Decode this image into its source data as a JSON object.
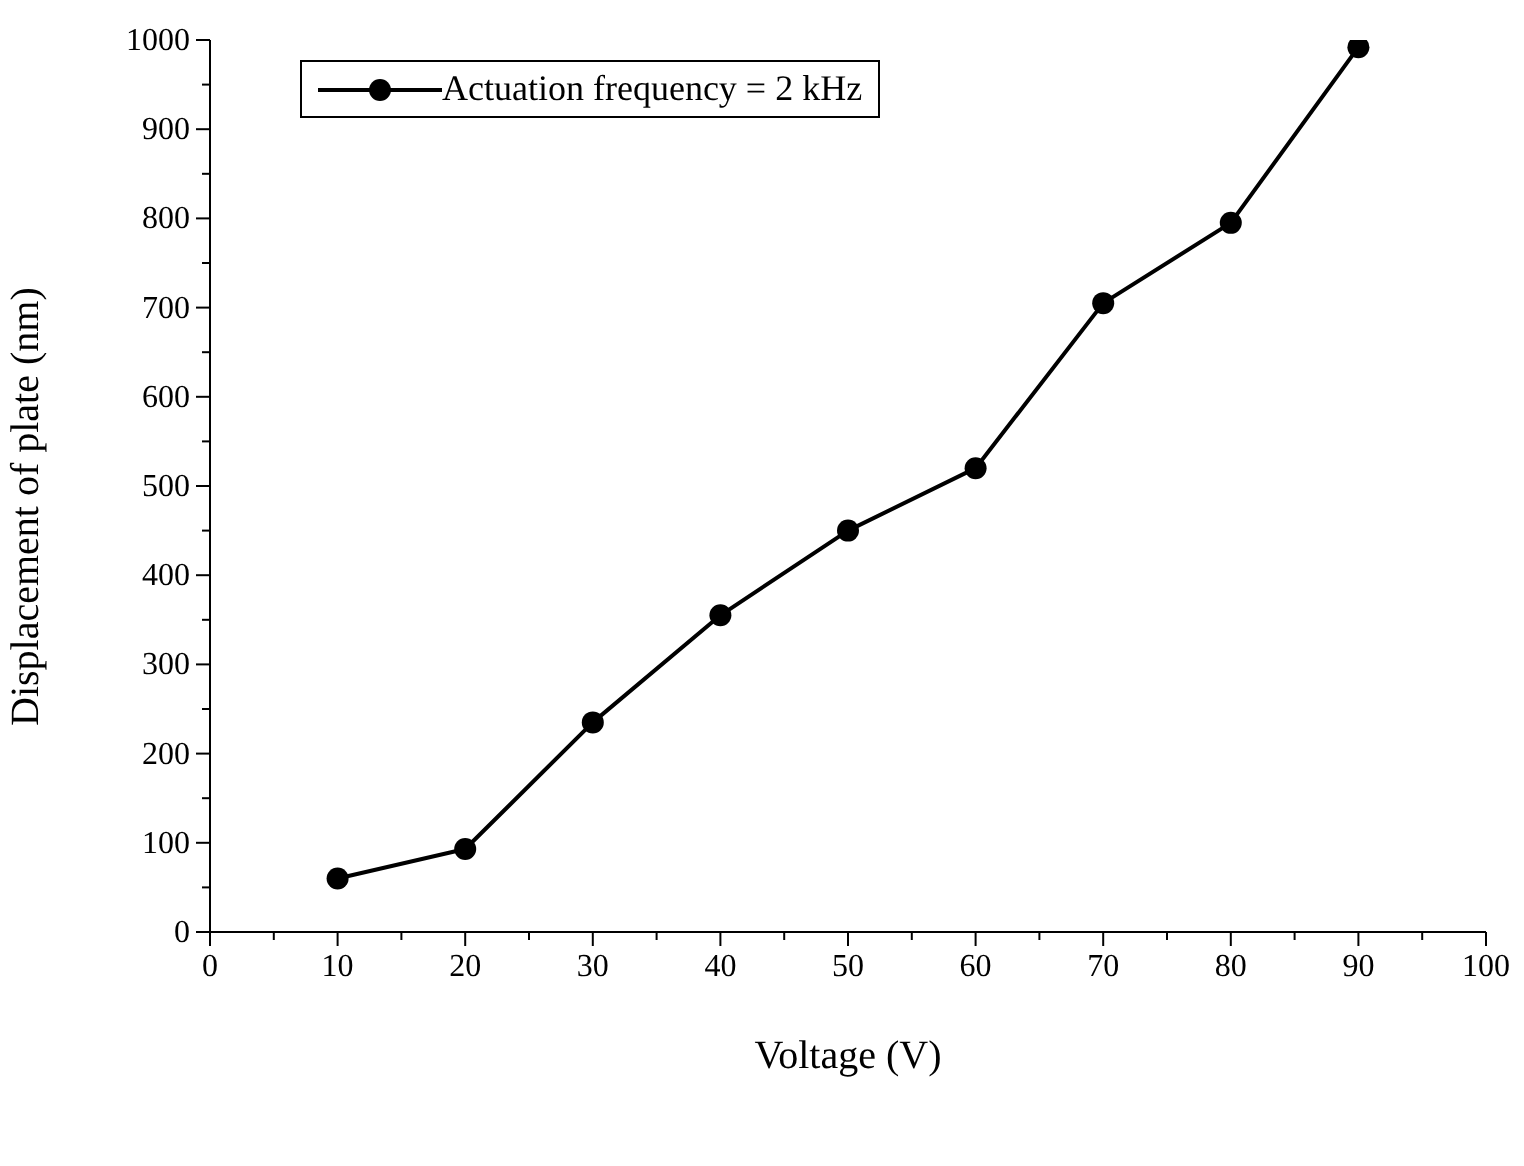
{
  "chart_data": {
    "type": "line",
    "xlabel": "Voltage (V)",
    "ylabel": "Displacement of plate (nm)",
    "x": [
      10,
      20,
      30,
      40,
      50,
      60,
      70,
      80,
      90
    ],
    "series": [
      {
        "name": "Actuation frequency = 2 kHz",
        "color": "#000000",
        "values": [
          60,
          93,
          235,
          355,
          450,
          520,
          705,
          795,
          992
        ]
      }
    ],
    "xlim": [
      0,
      100
    ],
    "xticks": [
      0,
      {
        "value": 5,
        "label": null
      },
      10,
      {
        "value": 15,
        "label": null
      },
      20,
      {
        "value": 25,
        "label": null
      },
      30,
      {
        "value": 35,
        "label": null
      },
      40,
      {
        "value": 45,
        "label": null
      },
      50,
      {
        "value": 55,
        "label": null
      },
      60,
      {
        "value": 65,
        "label": null
      },
      70,
      {
        "value": 75,
        "label": null
      },
      80,
      {
        "value": 85,
        "label": null
      },
      90,
      {
        "value": 95,
        "label": null
      },
      100
    ],
    "ylim": [
      0,
      1000
    ],
    "yticks": [
      0,
      {
        "value": 50,
        "label": null
      },
      100,
      {
        "value": 150,
        "label": null
      },
      200,
      {
        "value": 250,
        "label": null
      },
      300,
      {
        "value": 350,
        "label": null
      },
      400,
      {
        "value": 450,
        "label": null
      },
      500,
      {
        "value": 550,
        "label": null
      },
      600,
      {
        "value": 650,
        "label": null
      },
      700,
      {
        "value": 750,
        "label": null
      },
      800,
      {
        "value": 850,
        "label": null
      },
      900,
      {
        "value": 950,
        "label": null
      },
      1000
    ],
    "marker": "circle",
    "line_style": "solid",
    "legend": "top left",
    "grid": false
  }
}
